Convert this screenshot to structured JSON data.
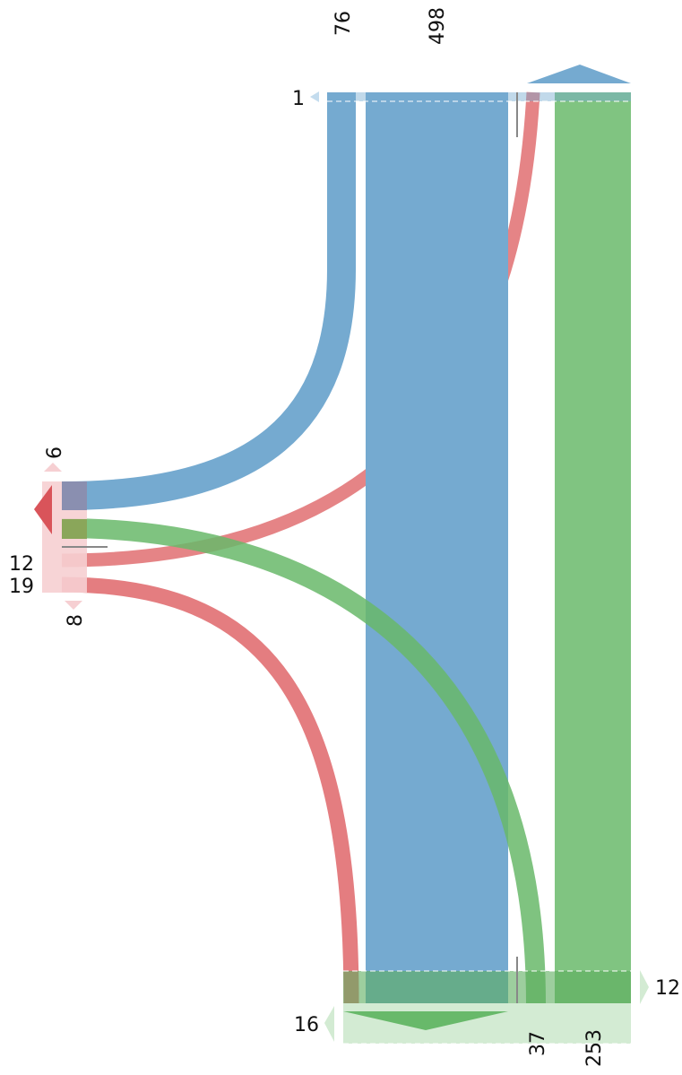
{
  "colors": {
    "blue": "#75aad0",
    "blue_light": "#c4dcee",
    "green": "#80c481",
    "green_light": "#d3ebd3",
    "red": "#e47d80",
    "red_dark": "#d9545a",
    "red_light": "#f6cfd2",
    "tick": "#888888"
  },
  "labels": {
    "top_76": "76",
    "top_498": "498",
    "top_1": "1",
    "left_6": "6",
    "left_12": "12",
    "left_19": "19",
    "left_8": "8",
    "right_12": "12",
    "bottom_16": "16",
    "bottom_37": "37",
    "bottom_253": "253"
  },
  "chart_data": {
    "type": "sankey",
    "flows": [
      {
        "from": "top-blue",
        "to": "left-pink",
        "value": 76,
        "color": "blue"
      },
      {
        "from": "top-blue",
        "to": "bottom-green",
        "value": 498,
        "color": "blue"
      },
      {
        "from": "top-green",
        "to": "bottom-green",
        "value": 253,
        "color": "green"
      },
      {
        "from": "left-pink",
        "to": "bottom-green",
        "value": 37,
        "color": "green"
      },
      {
        "from": "top",
        "to": "left-pink",
        "value": 12,
        "color": "red"
      },
      {
        "from": "left-pink",
        "to": "bottom-green",
        "value": 19,
        "color": "red"
      }
    ],
    "node_labels": [
      "1",
      "6",
      "12",
      "19",
      "8",
      "12",
      "16"
    ]
  }
}
